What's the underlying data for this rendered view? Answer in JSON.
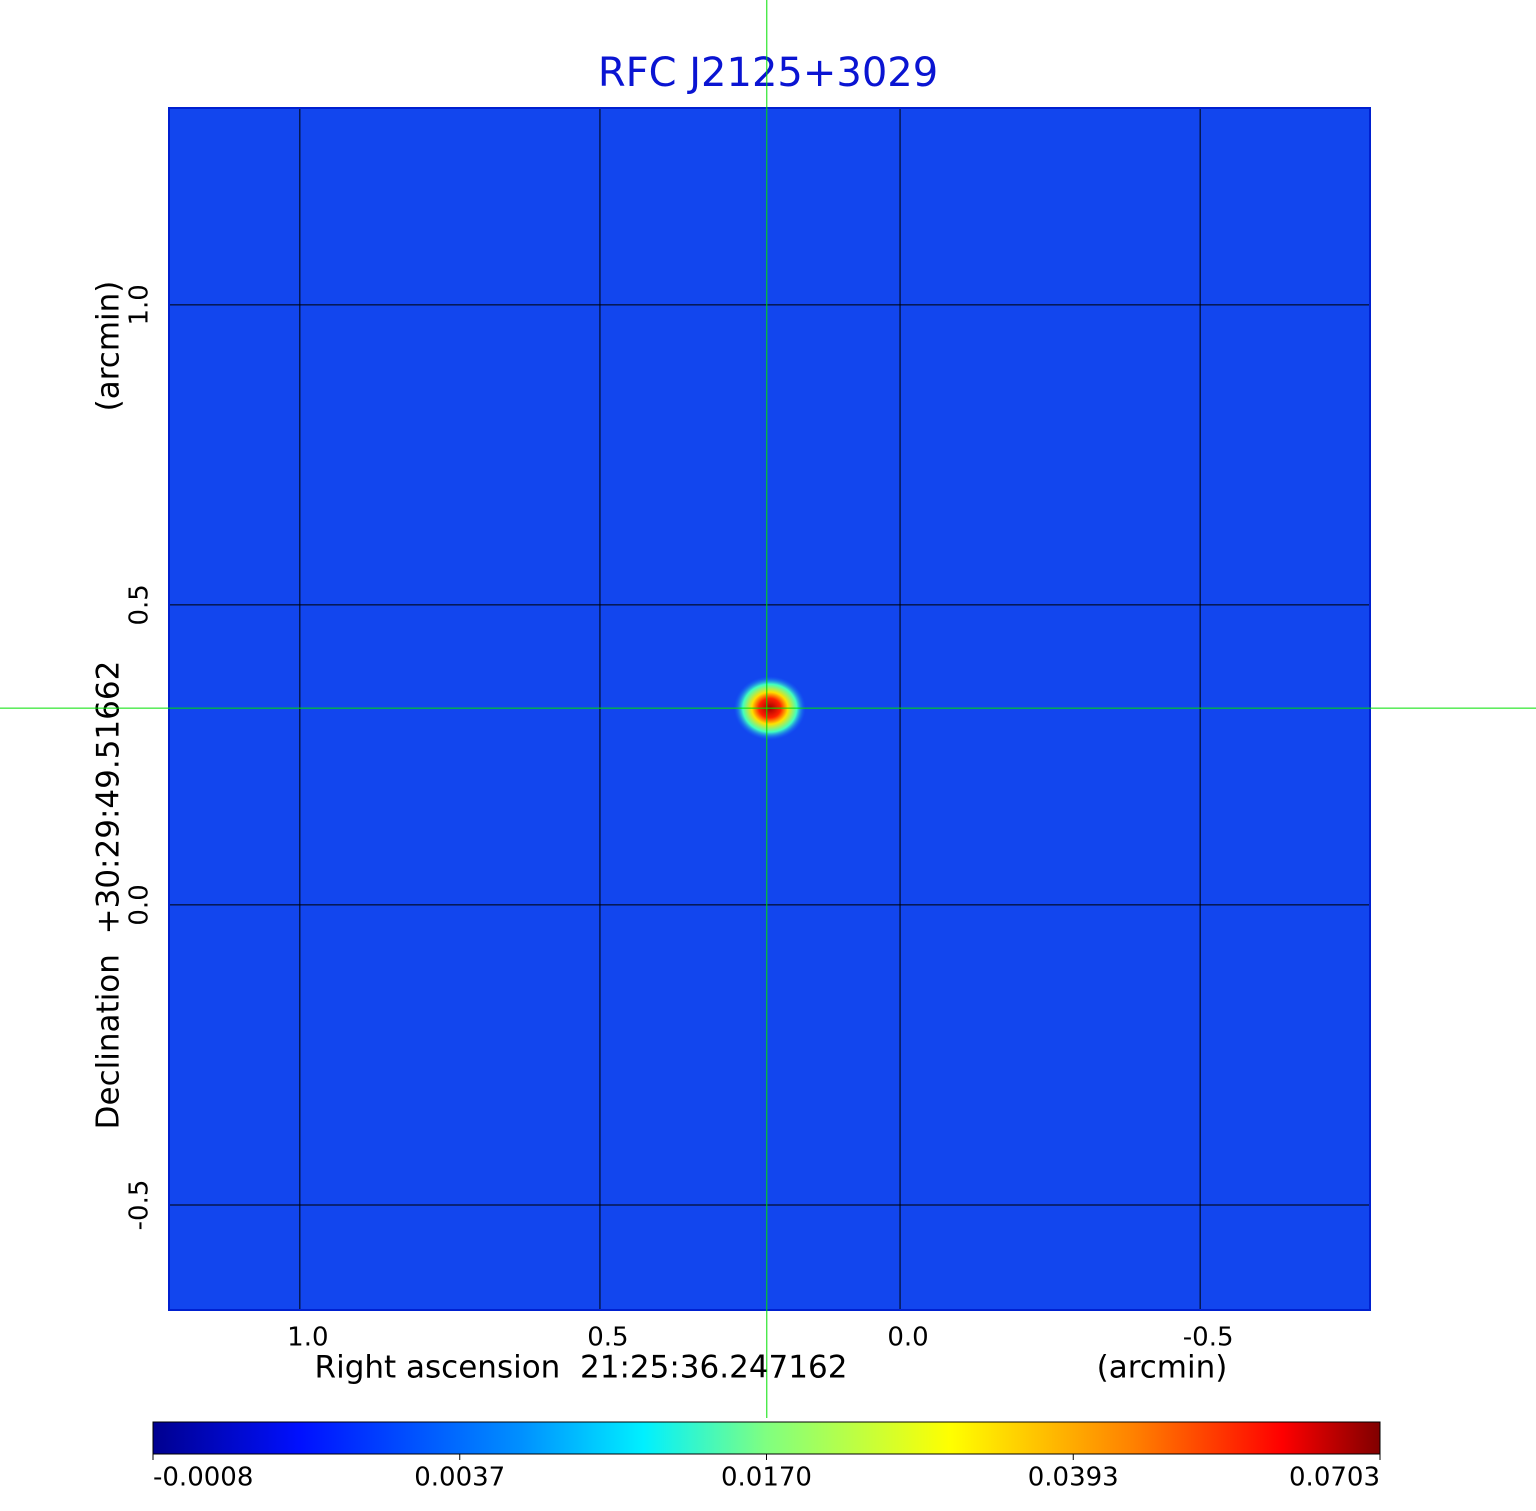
{
  "chart_data": {
    "type": "image",
    "title": "RFC J2125+3029",
    "xlabel": "Right ascension  21:25:36.247162",
    "xunit": "(arcmin)",
    "ylabel": "Declination  +30:29:49.51662",
    "yunit": "(arcmin)",
    "xlim": [
      1.218,
      -0.783
    ],
    "ylim": [
      -0.675,
      1.328
    ],
    "xticks": [
      {
        "value": 1,
        "label": "1.0"
      },
      0.5,
      {
        "value": 0,
        "label": "0.0"
      },
      -0.5
    ],
    "yticks": [
      -0.5,
      {
        "value": 0,
        "label": "0.0"
      },
      0.5,
      {
        "value": 1,
        "label": "1.0"
      }
    ],
    "grid": true,
    "source": {
      "x": 0.217,
      "y": 0.328,
      "peak": 0.0703
    },
    "crosshair": {
      "x": 0.222,
      "y": 0.328
    },
    "colorbar": {
      "ticks": [
        -0.0008,
        0.0037,
        {
          "value": 0.017,
          "label": "0.0170"
        },
        0.0393,
        0.0703
      ]
    }
  }
}
